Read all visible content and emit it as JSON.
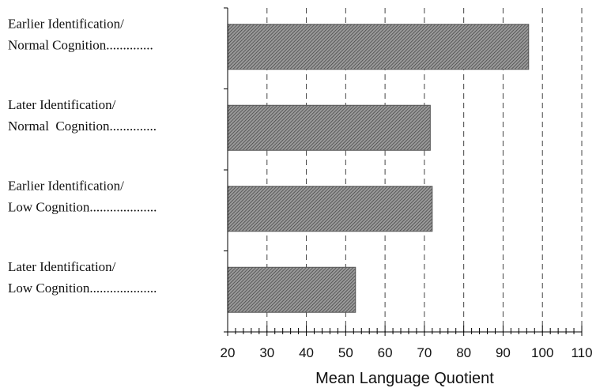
{
  "chart_data": {
    "type": "bar",
    "orientation": "horizontal",
    "categories": [
      [
        "Earlier Identification/",
        "Normal Cognition.............."
      ],
      [
        "Later Identification/",
        "Normal  Cognition.............."
      ],
      [
        "Earlier Identification/",
        "Low Cognition...................."
      ],
      [
        "Later Identification/",
        "Low Cognition...................."
      ]
    ],
    "values": [
      96.5,
      71.5,
      72,
      52.5
    ],
    "xlabel": "Mean Language Quotient",
    "xlim": [
      20,
      110
    ],
    "xticks": [
      20,
      30,
      40,
      50,
      60,
      70,
      80,
      90,
      100,
      110
    ],
    "grid": "vertical dashed",
    "bar_fill": "diagonal hatch",
    "colors": {
      "bar": "#888888",
      "hatch": "#444444",
      "axis": "#000000",
      "grid": "#444444"
    }
  }
}
